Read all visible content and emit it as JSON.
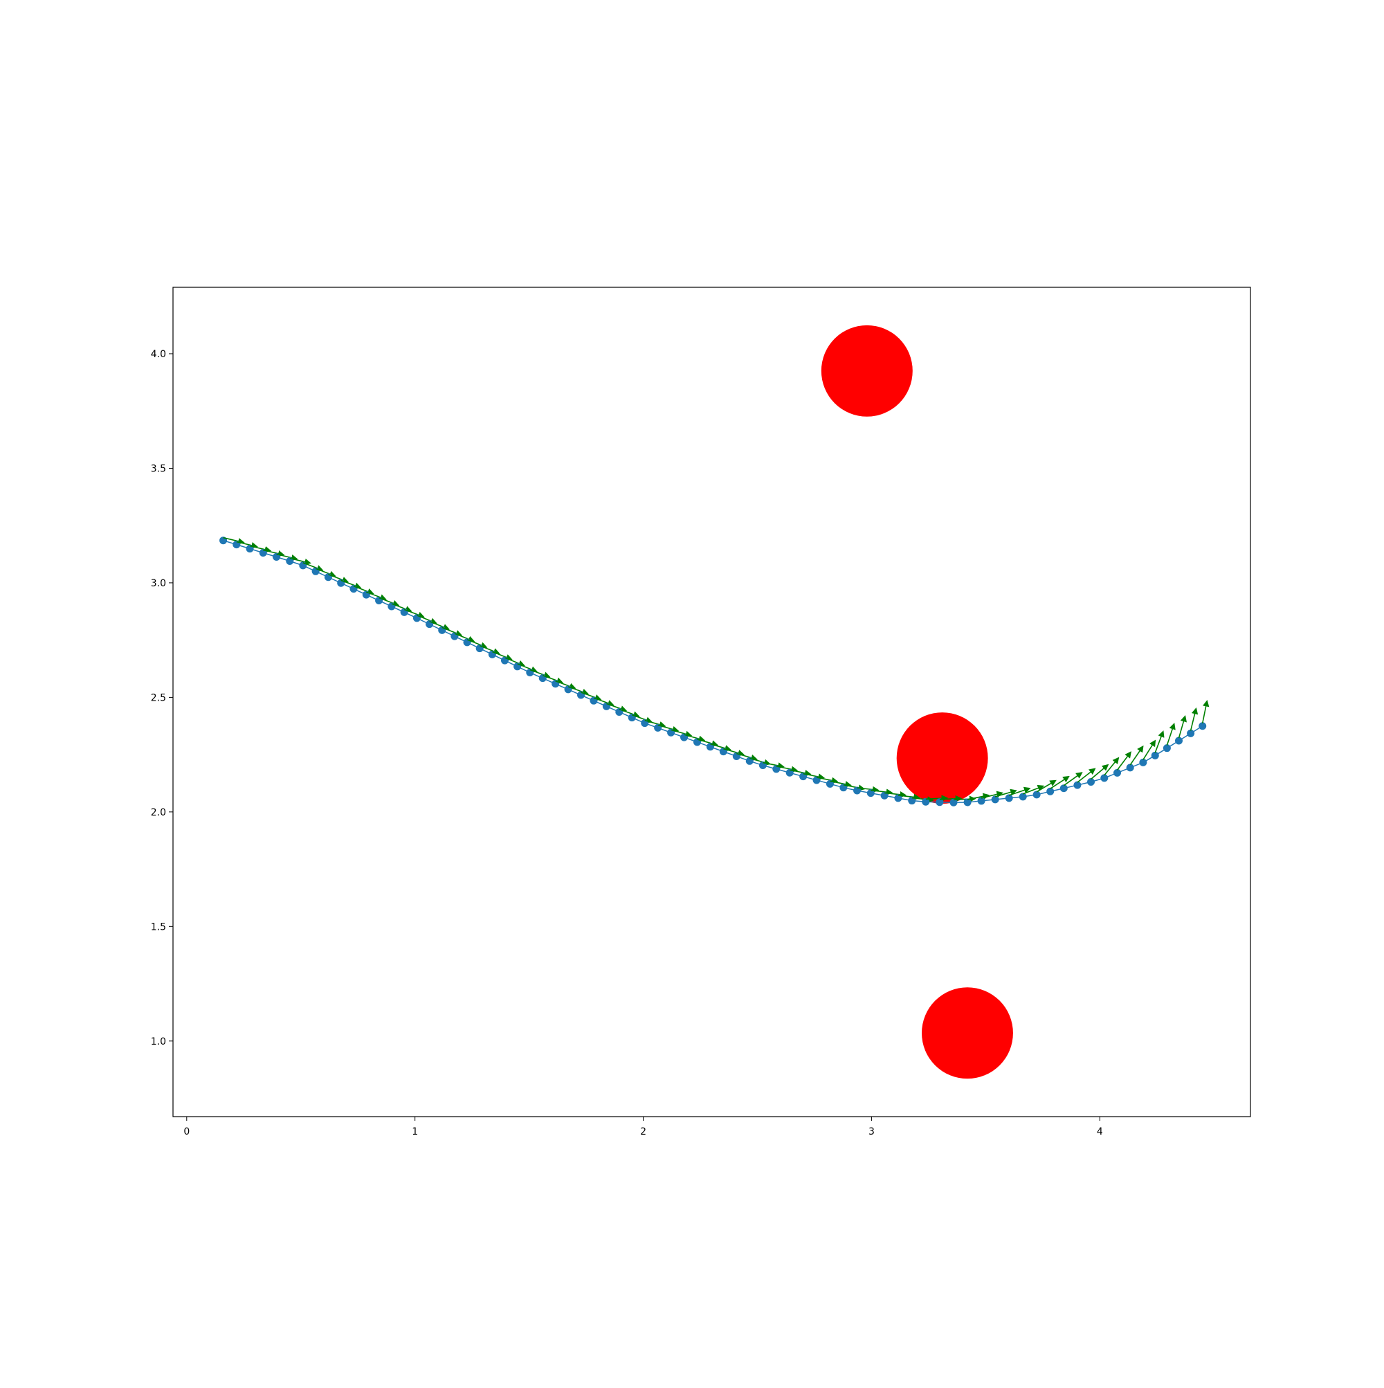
{
  "chart_data": {
    "type": "scatter",
    "title": "",
    "xlabel": "",
    "ylabel": "",
    "xlim": [
      -0.06,
      4.66
    ],
    "ylim": [
      0.67,
      4.29
    ],
    "xticks": [
      0,
      1,
      2,
      3,
      4
    ],
    "yticks": [
      1.0,
      1.5,
      2.0,
      2.5,
      3.0,
      3.5,
      4.0
    ],
    "xtick_labels": [
      "0",
      "1",
      "2",
      "3",
      "4"
    ],
    "ytick_labels": [
      "1.0",
      "1.5",
      "2.0",
      "2.5",
      "3.0",
      "3.5",
      "4.0"
    ],
    "grid": false,
    "legend": "none",
    "obstacles": {
      "color": "#ff0000",
      "radius": 0.2,
      "centers": [
        {
          "x": 2.98,
          "y": 3.925
        },
        {
          "x": 3.31,
          "y": 2.235
        },
        {
          "x": 3.42,
          "y": 1.035
        }
      ]
    },
    "trajectory": {
      "point_color": "#1f77b4",
      "arrow_color": "#008000",
      "start": {
        "x": 0.16,
        "y": 3.185
      },
      "end": {
        "x": 4.45,
        "y": 2.375
      },
      "control_points": [
        {
          "x": 0.16,
          "y": 3.185
        },
        {
          "x": 0.5,
          "y": 3.08
        },
        {
          "x": 1.0,
          "y": 2.85
        },
        {
          "x": 1.5,
          "y": 2.61
        },
        {
          "x": 2.0,
          "y": 2.39
        },
        {
          "x": 2.5,
          "y": 2.21
        },
        {
          "x": 2.9,
          "y": 2.1
        },
        {
          "x": 3.2,
          "y": 2.045
        },
        {
          "x": 3.4,
          "y": 2.04
        },
        {
          "x": 3.7,
          "y": 2.07
        },
        {
          "x": 4.0,
          "y": 2.14
        },
        {
          "x": 4.2,
          "y": 2.22
        },
        {
          "x": 4.45,
          "y": 2.375
        }
      ],
      "num_points": 76,
      "arrow_length": 0.06
    }
  }
}
